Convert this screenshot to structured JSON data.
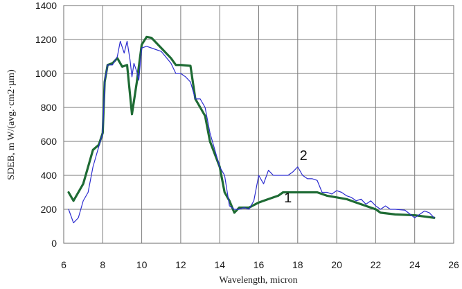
{
  "chart_data": {
    "type": "line",
    "xlabel": "Wavelength, micron",
    "ylabel": "SDEB, m W/(avg.·cm2·µm)",
    "xlim": [
      6,
      26
    ],
    "ylim": [
      0,
      1400
    ],
    "x_ticks": [
      6,
      8,
      10,
      12,
      14,
      16,
      18,
      20,
      22,
      24,
      26
    ],
    "y_ticks": [
      0,
      200,
      400,
      600,
      800,
      1000,
      1200,
      1400
    ],
    "grid": true,
    "series": [
      {
        "name": "1",
        "color": "#1e6b34",
        "points": [
          [
            6.25,
            300
          ],
          [
            6.5,
            250
          ],
          [
            7.0,
            350
          ],
          [
            7.5,
            550
          ],
          [
            7.8,
            580
          ],
          [
            8.0,
            650
          ],
          [
            8.1,
            950
          ],
          [
            8.25,
            1050
          ],
          [
            8.5,
            1060
          ],
          [
            8.75,
            1090
          ],
          [
            9.0,
            1040
          ],
          [
            9.25,
            1050
          ],
          [
            9.5,
            760
          ],
          [
            9.75,
            950
          ],
          [
            10.0,
            1170
          ],
          [
            10.25,
            1215
          ],
          [
            10.5,
            1210
          ],
          [
            11.0,
            1150
          ],
          [
            11.5,
            1090
          ],
          [
            11.75,
            1050
          ],
          [
            12.0,
            1050
          ],
          [
            12.5,
            1045
          ],
          [
            12.75,
            850
          ],
          [
            13.25,
            750
          ],
          [
            13.5,
            600
          ],
          [
            14.0,
            450
          ],
          [
            14.25,
            300
          ],
          [
            14.5,
            250
          ],
          [
            14.75,
            180
          ],
          [
            15.0,
            210
          ],
          [
            15.5,
            210
          ],
          [
            16.0,
            240
          ],
          [
            16.5,
            260
          ],
          [
            17.0,
            280
          ],
          [
            17.25,
            300
          ],
          [
            18.0,
            300
          ],
          [
            19.0,
            300
          ],
          [
            19.5,
            280
          ],
          [
            20.0,
            270
          ],
          [
            20.5,
            260
          ],
          [
            21.0,
            240
          ],
          [
            21.5,
            220
          ],
          [
            22.0,
            200
          ],
          [
            22.25,
            180
          ],
          [
            23.0,
            170
          ],
          [
            24.0,
            165
          ],
          [
            25.0,
            150
          ]
        ]
      },
      {
        "name": "2",
        "color": "#2b2bcf",
        "points": [
          [
            6.25,
            200
          ],
          [
            6.5,
            120
          ],
          [
            6.75,
            150
          ],
          [
            7.0,
            250
          ],
          [
            7.25,
            300
          ],
          [
            7.5,
            450
          ],
          [
            7.75,
            550
          ],
          [
            8.0,
            650
          ],
          [
            8.1,
            950
          ],
          [
            8.25,
            1050
          ],
          [
            8.5,
            1050
          ],
          [
            8.75,
            1100
          ],
          [
            8.9,
            1190
          ],
          [
            9.1,
            1120
          ],
          [
            9.25,
            1190
          ],
          [
            9.4,
            1080
          ],
          [
            9.5,
            980
          ],
          [
            9.6,
            1060
          ],
          [
            9.75,
            1010
          ],
          [
            9.85,
            960
          ],
          [
            10.0,
            1150
          ],
          [
            10.25,
            1160
          ],
          [
            10.5,
            1150
          ],
          [
            11.0,
            1130
          ],
          [
            11.5,
            1060
          ],
          [
            11.75,
            1000
          ],
          [
            12.0,
            1000
          ],
          [
            12.25,
            980
          ],
          [
            12.5,
            950
          ],
          [
            12.75,
            850
          ],
          [
            13.0,
            850
          ],
          [
            13.25,
            800
          ],
          [
            13.5,
            650
          ],
          [
            13.75,
            550
          ],
          [
            14.0,
            450
          ],
          [
            14.25,
            400
          ],
          [
            14.5,
            220
          ],
          [
            14.75,
            200
          ],
          [
            15.0,
            200
          ],
          [
            15.25,
            210
          ],
          [
            15.5,
            200
          ],
          [
            15.75,
            250
          ],
          [
            16.0,
            400
          ],
          [
            16.25,
            350
          ],
          [
            16.5,
            430
          ],
          [
            16.75,
            400
          ],
          [
            17.0,
            400
          ],
          [
            17.25,
            400
          ],
          [
            17.5,
            400
          ],
          [
            17.75,
            420
          ],
          [
            18.0,
            450
          ],
          [
            18.25,
            400
          ],
          [
            18.5,
            380
          ],
          [
            18.75,
            380
          ],
          [
            19.0,
            370
          ],
          [
            19.25,
            300
          ],
          [
            19.5,
            300
          ],
          [
            19.75,
            290
          ],
          [
            20.0,
            310
          ],
          [
            20.25,
            300
          ],
          [
            20.5,
            280
          ],
          [
            20.75,
            270
          ],
          [
            21.0,
            250
          ],
          [
            21.25,
            260
          ],
          [
            21.5,
            230
          ],
          [
            21.75,
            250
          ],
          [
            22.0,
            220
          ],
          [
            22.25,
            200
          ],
          [
            22.5,
            220
          ],
          [
            22.75,
            200
          ],
          [
            23.0,
            200
          ],
          [
            23.5,
            195
          ],
          [
            24.0,
            150
          ],
          [
            24.25,
            170
          ],
          [
            24.5,
            190
          ],
          [
            24.75,
            180
          ],
          [
            25.0,
            150
          ]
        ]
      }
    ],
    "annotations": [
      {
        "text": "1",
        "x": 17.5,
        "y": 240,
        "series": 0
      },
      {
        "text": "2",
        "x": 18.3,
        "y": 490,
        "series": 1
      }
    ]
  }
}
